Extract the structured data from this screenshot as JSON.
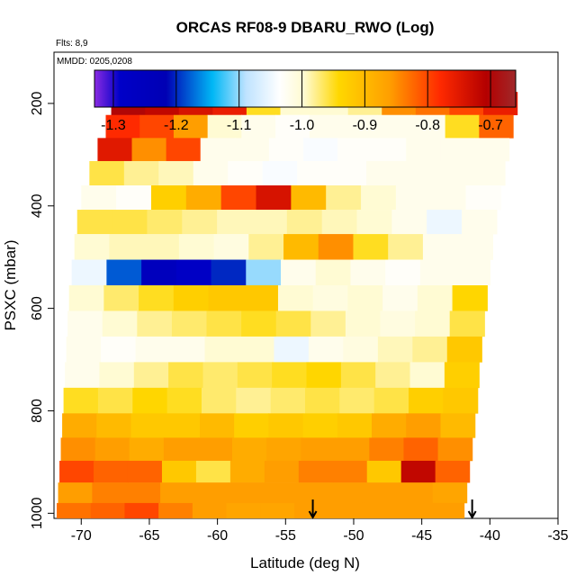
{
  "chart_data": {
    "type": "heatmap",
    "title": "ORCAS RF08-9 DBARU_RWO (Log)",
    "flights_note": "Flts: 8,9",
    "date_note": "MMDD: 0205,0208",
    "xlabel": "Latitude (deg N)",
    "ylabel": "PSXC (mbar)",
    "xlim": [
      -72,
      -35
    ],
    "ylim": [
      1010,
      100
    ],
    "x_ticks": [
      -70,
      -65,
      -60,
      -55,
      -50,
      -45,
      -40,
      -35
    ],
    "y_ticks": [
      200,
      400,
      600,
      800,
      1000
    ],
    "colorbar": {
      "range": [
        -1.33,
        -0.66
      ],
      "ticks": [
        -1.3,
        -1.2,
        -1.1,
        -1.0,
        -0.9,
        -0.8,
        -0.7
      ],
      "tick_labels": [
        "-1.3",
        "-1.2",
        "-1.1",
        "-1.0",
        "-0.9",
        "-0.8",
        "-0.7"
      ]
    },
    "arrows_lat": [
      -53.0,
      -41.3
    ],
    "rows": [
      {
        "p": 200,
        "lat_start": -67.8,
        "lat_end": -38.0,
        "values": [
          -0.7,
          -0.72,
          -0.74,
          -0.76,
          -0.95,
          -1.0,
          -1.0,
          -0.98,
          -0.85,
          -0.83,
          -0.8,
          -0.76
        ]
      },
      {
        "p": 245,
        "lat_start": -68.2,
        "lat_end": -38.3,
        "values": [
          -0.78,
          -0.8,
          -0.86,
          -1.0,
          -1.02,
          -1.03,
          -1.02,
          -1.02,
          -1.02,
          -1.02,
          -0.95,
          -0.82
        ]
      },
      {
        "p": 290,
        "lat_start": -68.8,
        "lat_end": -38.6,
        "values": [
          -0.75,
          -0.85,
          -0.8,
          -1.02,
          -1.02,
          -1.03,
          -1.04,
          -1.03,
          -1.03,
          -1.02,
          -1.02,
          -1.02
        ]
      },
      {
        "p": 335,
        "lat_start": -69.4,
        "lat_end": -38.9,
        "values": [
          -0.96,
          -0.98,
          -0.99,
          -1.02,
          -1.03,
          -1.04,
          -1.03,
          -1.03,
          -1.02,
          -1.02,
          -1.02,
          -1.02
        ]
      },
      {
        "p": 385,
        "lat_start": -70.0,
        "lat_end": -39.2,
        "values": [
          -1.02,
          -1.03,
          -0.93,
          -0.88,
          -0.8,
          -0.74,
          -0.9,
          -0.98,
          -1.0,
          -1.02,
          -1.02,
          -1.03
        ]
      },
      {
        "p": 430,
        "lat_start": -70.3,
        "lat_end": -39.5,
        "values": [
          -0.96,
          -0.96,
          -0.97,
          -0.98,
          -0.99,
          -0.99,
          -0.98,
          -0.99,
          -1.0,
          -1.02,
          -1.05,
          -1.02
        ]
      },
      {
        "p": 480,
        "lat_start": -70.5,
        "lat_end": -39.8,
        "values": [
          -1.0,
          -0.99,
          -0.99,
          -1.0,
          -1.01,
          -0.98,
          -0.9,
          -0.85,
          -0.95,
          -0.98,
          -1.02,
          -1.02
        ]
      },
      {
        "p": 530,
        "lat_start": -70.7,
        "lat_end": -40.0,
        "values": [
          -1.05,
          -1.18,
          -1.25,
          -1.28,
          -1.2,
          -1.1,
          -1.02,
          -1.0,
          -1.02,
          -1.03,
          -1.02,
          -1.02
        ]
      },
      {
        "p": 580,
        "lat_start": -70.9,
        "lat_end": -40.2,
        "values": [
          -1.0,
          -0.97,
          -0.95,
          -0.93,
          -0.92,
          -0.92,
          -1.0,
          -1.01,
          -1.0,
          -1.02,
          -1.0,
          -0.94
        ]
      },
      {
        "p": 630,
        "lat_start": -71.0,
        "lat_end": -40.4,
        "values": [
          -1.02,
          -1.0,
          -0.98,
          -0.97,
          -0.96,
          -0.95,
          -0.96,
          -0.98,
          -1.0,
          -1.01,
          -1.0,
          -0.96
        ]
      },
      {
        "p": 680,
        "lat_start": -71.1,
        "lat_end": -40.6,
        "values": [
          -1.02,
          -1.03,
          -1.02,
          -1.02,
          -1.0,
          -1.0,
          -1.05,
          -1.02,
          -1.01,
          -0.99,
          -0.98,
          -0.92
        ]
      },
      {
        "p": 730,
        "lat_start": -71.2,
        "lat_end": -40.8,
        "values": [
          -1.02,
          -1.0,
          -0.98,
          -0.96,
          -0.97,
          -0.96,
          -0.95,
          -0.94,
          -0.96,
          -0.98,
          -1.0,
          -0.93
        ]
      },
      {
        "p": 780,
        "lat_start": -71.3,
        "lat_end": -40.9,
        "values": [
          -0.95,
          -0.96,
          -0.94,
          -0.95,
          -0.97,
          -0.98,
          -0.97,
          -0.96,
          -0.97,
          -0.96,
          -0.93,
          -0.92
        ]
      },
      {
        "p": 830,
        "lat_start": -71.4,
        "lat_end": -41.1,
        "values": [
          -0.88,
          -0.9,
          -0.92,
          -0.92,
          -0.9,
          -0.93,
          -0.92,
          -0.93,
          -0.92,
          -0.88,
          -0.86,
          -0.9
        ]
      },
      {
        "p": 875,
        "lat_start": -71.5,
        "lat_end": -41.3,
        "values": [
          -0.85,
          -0.86,
          -0.88,
          -0.86,
          -0.86,
          -0.88,
          -0.87,
          -0.86,
          -0.86,
          -0.84,
          -0.82,
          -0.85
        ]
      },
      {
        "p": 920,
        "lat_start": -71.6,
        "lat_end": -41.5,
        "values": [
          -0.8,
          -0.82,
          -0.82,
          -0.92,
          -0.96,
          -0.88,
          -0.86,
          -0.84,
          -0.84,
          -0.92,
          -0.72,
          -0.82
        ]
      },
      {
        "p": 960,
        "lat_start": -71.7,
        "lat_end": -41.7,
        "values": [
          -0.86,
          -0.84,
          -0.84,
          -0.86,
          -0.86,
          -0.86,
          -0.86,
          -0.86,
          -0.86,
          -0.86,
          -0.86,
          -0.87
        ]
      },
      {
        "p": 1000,
        "lat_start": -71.8,
        "lat_end": -41.9,
        "values": [
          -0.83,
          -0.82,
          -0.8,
          -0.84,
          -0.86,
          -0.87,
          -0.87,
          -0.86,
          -0.86,
          -0.86,
          -0.86,
          -0.86
        ]
      }
    ]
  }
}
